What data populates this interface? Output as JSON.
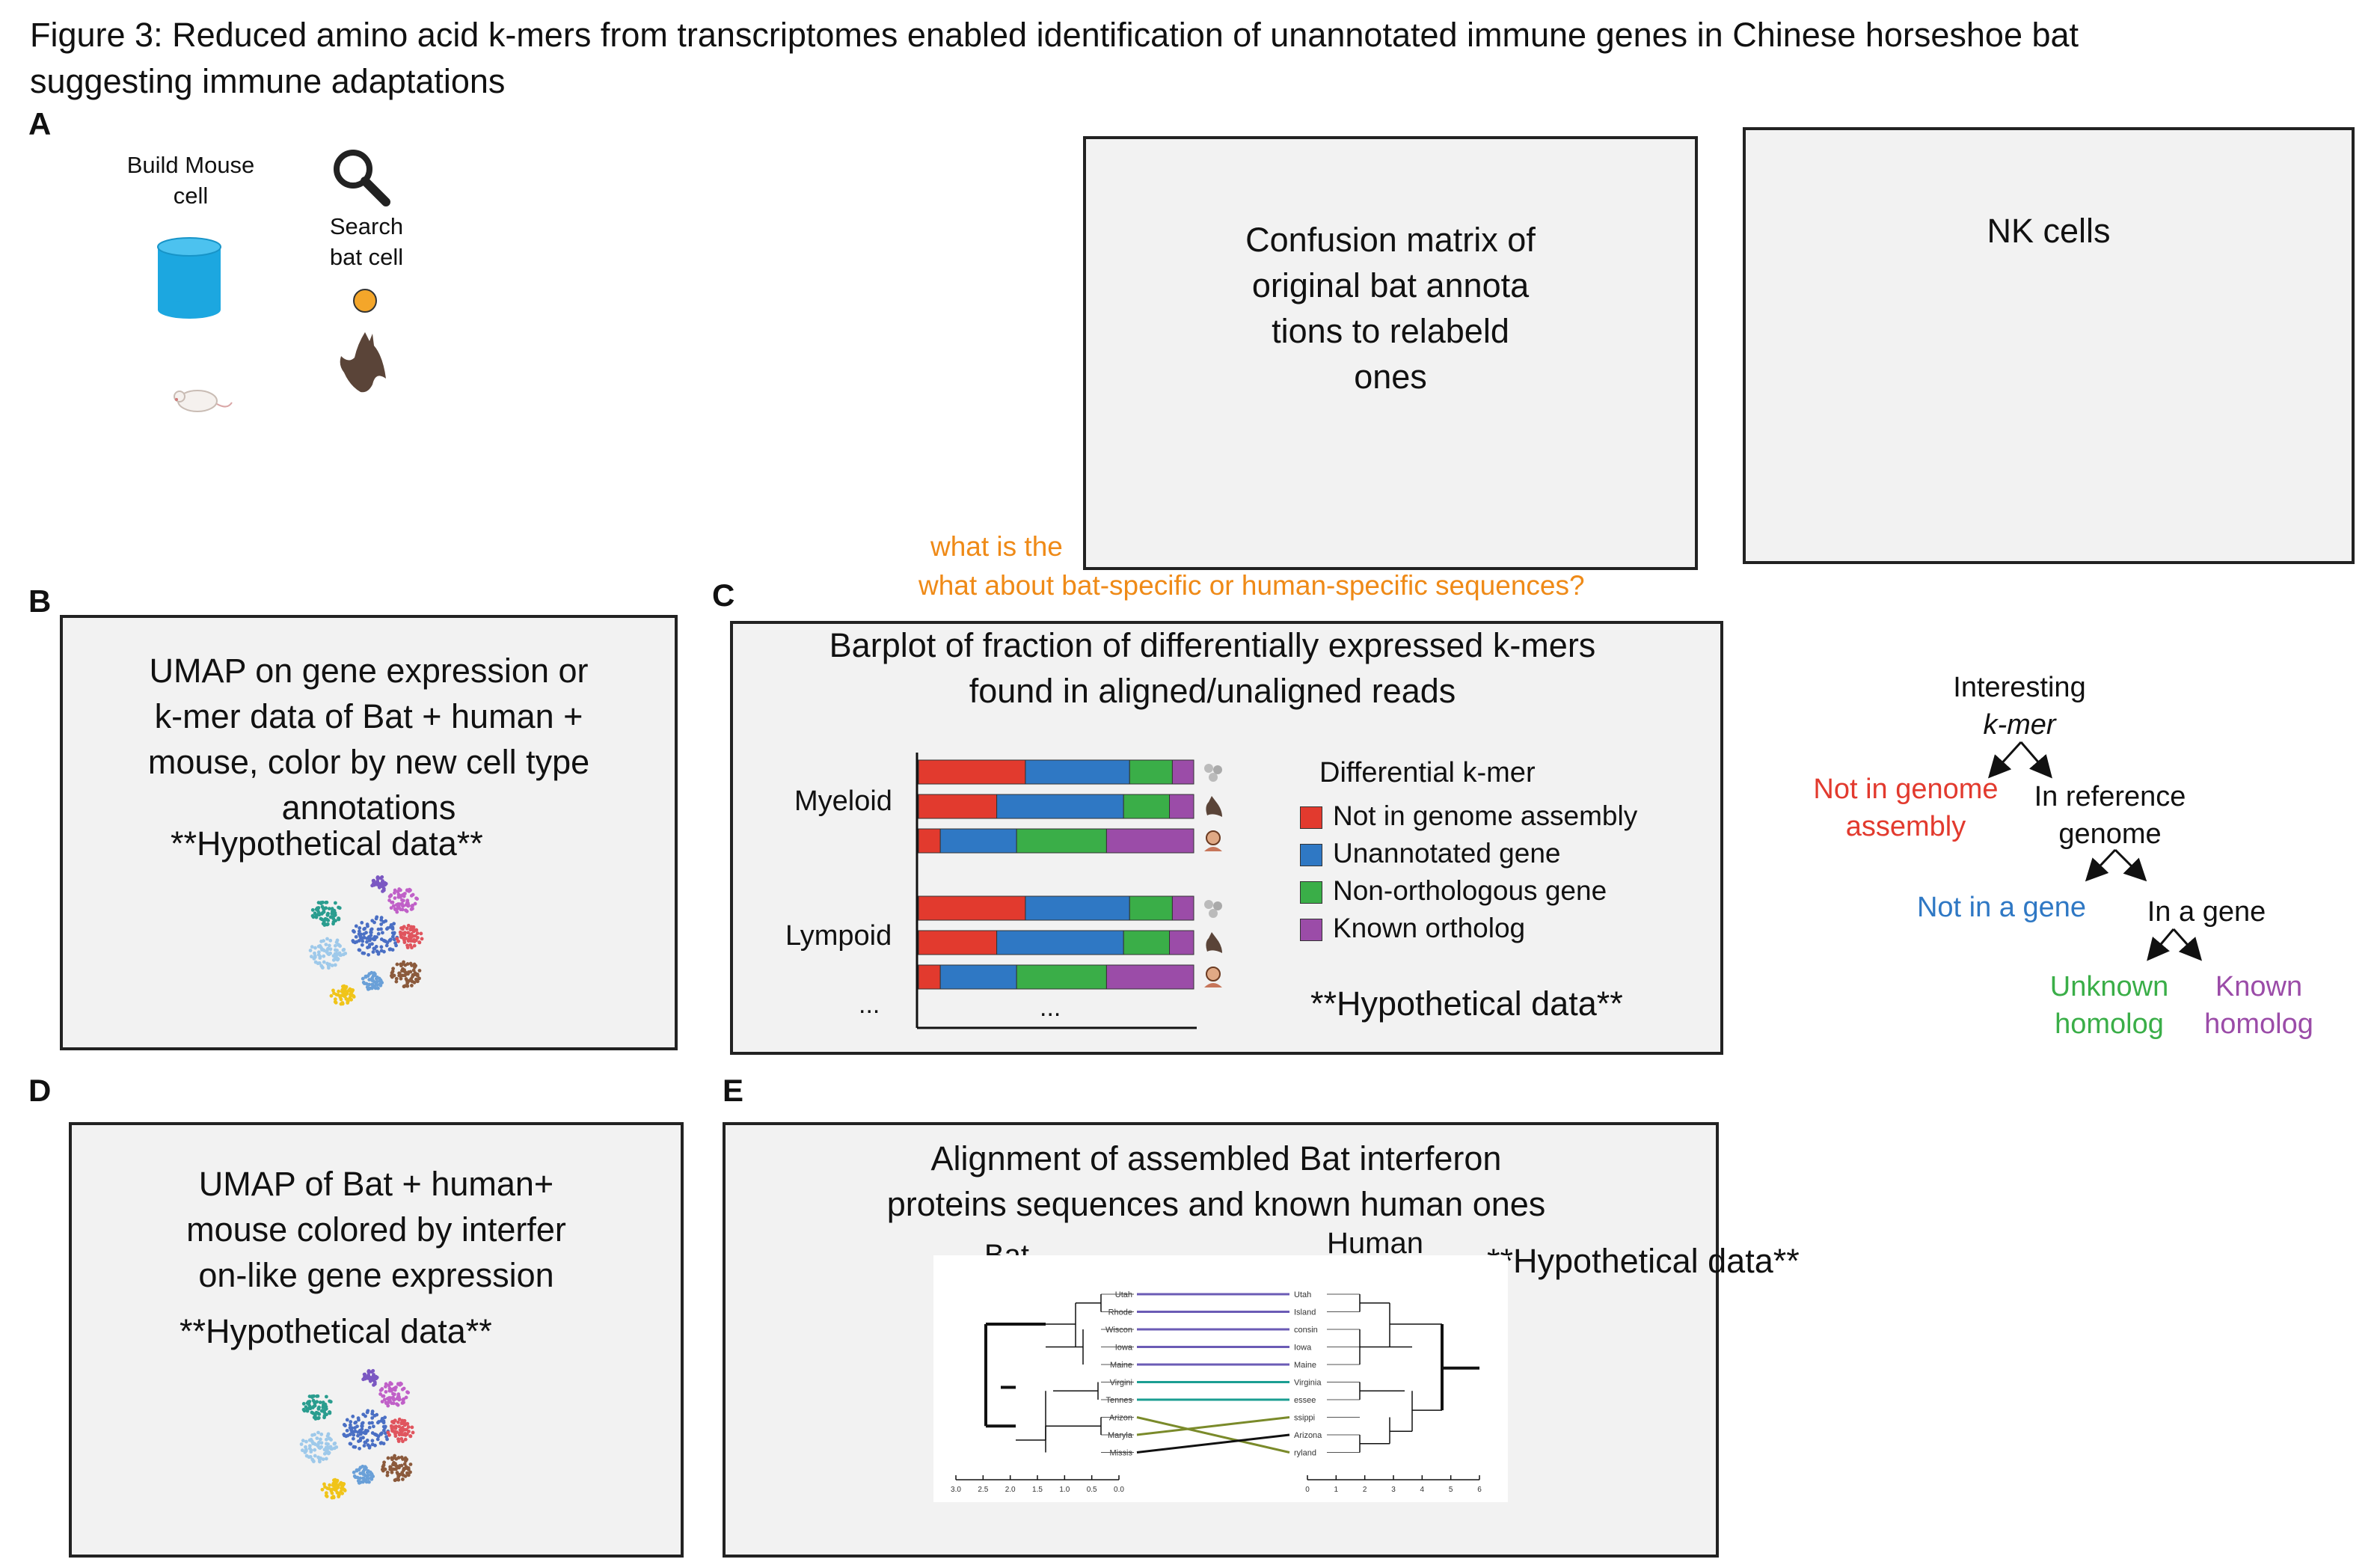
{
  "figure": {
    "title_line1": "Figure 3: Reduced amino acid k-mers from transcriptomes enabled identification of unannotated immune genes in Chinese horseshoe bat",
    "title_line2": "suggesting immune adaptations"
  },
  "panel_labels": {
    "a": "A",
    "b": "B",
    "c": "C",
    "d": "D",
    "e": "E"
  },
  "panel_a": {
    "build_line1": "Build Mouse",
    "build_line2": "cell",
    "search_line1": "Search",
    "search_line2": "bat cell",
    "confusion_line1": "Confusion matrix of",
    "confusion_line2": "original bat annota",
    "confusion_line3": "tions to relabeld",
    "confusion_line4": "ones",
    "nk": "NK cells"
  },
  "annotations": {
    "orange_1": "what is the",
    "orange_2": "what about bat-specific or human-specific sequences?"
  },
  "panel_b": {
    "line1": "UMAP on gene expression or",
    "line2": "k-mer data of Bat + human +",
    "line3": "mouse, color by new cell type",
    "line4": "annotations",
    "hypo": "**Hypothetical data**"
  },
  "panel_c": {
    "line1": "Barplot of fraction of differentially expressed k-mers",
    "line2": "found in aligned/unaligned reads",
    "legend_title": "Differential k-mer",
    "hypo": "**Hypothetical data**",
    "ellipsis_y": "...",
    "ellipsis_x": "..."
  },
  "chart_data": {
    "type": "bar",
    "orientation": "horizontal",
    "stacked": true,
    "title": "",
    "xlabel": "",
    "ylabel": "",
    "groups": [
      "Myeloid",
      "Lympoid"
    ],
    "rows": [
      {
        "group": "Myeloid",
        "species": "mouse"
      },
      {
        "group": "Myeloid",
        "species": "bat"
      },
      {
        "group": "Myeloid",
        "species": "human"
      },
      {
        "group": "Lympoid",
        "species": "mouse"
      },
      {
        "group": "Lympoid",
        "species": "bat"
      },
      {
        "group": "Lympoid",
        "species": "human"
      }
    ],
    "series": [
      {
        "name": "Not in genome assembly",
        "color": "#e23a2e",
        "values": [
          0.4,
          0.29,
          0.08,
          0.4,
          0.29,
          0.08
        ]
      },
      {
        "name": "Unannotated gene",
        "color": "#2f78c4",
        "values": [
          0.39,
          0.47,
          0.28,
          0.39,
          0.47,
          0.28
        ]
      },
      {
        "name": "Non-orthologous gene",
        "color": "#3aae48",
        "values": [
          0.16,
          0.17,
          0.33,
          0.16,
          0.17,
          0.33
        ]
      },
      {
        "name": "Known ortholog",
        "color": "#9b4ca8",
        "values": [
          0.08,
          0.09,
          0.32,
          0.08,
          0.09,
          0.32
        ]
      }
    ],
    "xlim": [
      0,
      1
    ],
    "grid": false,
    "legend_position": "right"
  },
  "tree": {
    "root_line1": "Interesting",
    "root_line2": "k-mer",
    "not_genome_line1": "Not in genome",
    "not_genome_line2": "assembly",
    "in_ref_line1": "In reference",
    "in_ref_line2": "genome",
    "not_gene": "Not in a gene",
    "in_gene": "In a gene",
    "unknown_line1": "Unknown",
    "unknown_line2": "homolog",
    "known_line1": "Known",
    "known_line2": "homolog",
    "colors": {
      "red": "#e23a2e",
      "blue": "#2f78c4",
      "green": "#3aae48",
      "purple": "#9b4ca8"
    }
  },
  "panel_d": {
    "line1": "UMAP of Bat + human+",
    "line2": "mouse colored by interfer",
    "line3": "on-like gene expression",
    "hypo": "**Hypothetical data**"
  },
  "panel_e": {
    "line1": "Alignment of assembled Bat interferon",
    "line2": "proteins sequences and known human ones",
    "bat": "Bat",
    "human": "Human",
    "hypo": "**Hypothetical data**",
    "left_labels": [
      "Utah",
      "Rhode",
      "Wiscon",
      "Iowa",
      "Maine",
      "Virgini",
      "Tennes",
      "Arizon",
      "Maryla",
      "Missis"
    ],
    "right_labels": [
      "Utah",
      "Island",
      "consin",
      "Iowa",
      "Maine",
      "Virginia",
      "essee",
      "ssippi",
      "Arizona",
      "ryland"
    ],
    "left_ticks": [
      "3.0",
      "2.5",
      "2.0",
      "1.5",
      "1.0",
      "0.5",
      "0.0"
    ],
    "right_ticks": [
      "0",
      "1",
      "2",
      "3",
      "4",
      "5",
      "6"
    ]
  }
}
